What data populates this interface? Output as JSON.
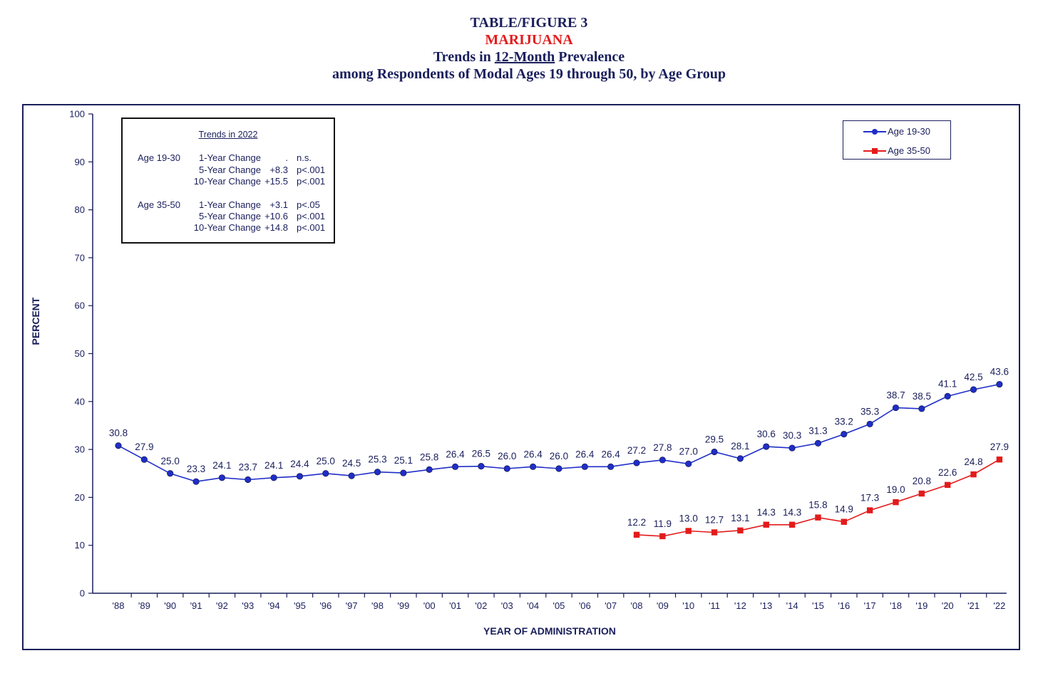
{
  "title": {
    "line1": "TABLE/FIGURE 3",
    "line2": "MARIJUANA",
    "line3_pre": "Trends in ",
    "line3_underlined": "12-Month",
    "line3_post": " Prevalence",
    "line4": "among Respondents of Modal Ages 19 through 50, by Age Group"
  },
  "stats_box": {
    "title": "Trends in 2022",
    "rows": [
      {
        "age": "Age 19-30",
        "label": "1-Year Change",
        "value": ".",
        "p": "n.s."
      },
      {
        "age": "",
        "label": "5-Year Change",
        "value": "+8.3",
        "p": "p<.001"
      },
      {
        "age": "",
        "label": "10-Year Change",
        "value": "+15.5",
        "p": "p<.001"
      },
      {
        "age": "Age 35-50",
        "label": "1-Year Change",
        "value": "+3.1",
        "p": "p<.05"
      },
      {
        "age": "",
        "label": "5-Year Change",
        "value": "+10.6",
        "p": "p<.001"
      },
      {
        "age": "",
        "label": "10-Year Change",
        "value": "+14.8",
        "p": "p<.001"
      }
    ]
  },
  "colors": {
    "navy": "#1a1f5c",
    "series1": "#1f2ec8",
    "series2": "#e31b1b"
  },
  "chart_data": {
    "type": "line",
    "xlabel": "YEAR OF ADMINISTRATION",
    "ylabel": "PERCENT",
    "ylim": [
      0,
      100
    ],
    "yticks": [
      0,
      10,
      20,
      30,
      40,
      50,
      60,
      70,
      80,
      90,
      100
    ],
    "grid": false,
    "legend_position": "top-right",
    "categories": [
      "'88",
      "'89",
      "'90",
      "'91",
      "'92",
      "'93",
      "'94",
      "'95",
      "'96",
      "'97",
      "'98",
      "'99",
      "'00",
      "'01",
      "'02",
      "'03",
      "'04",
      "'05",
      "'06",
      "'07",
      "'08",
      "'09",
      "'10",
      "'11",
      "'12",
      "'13",
      "'14",
      "'15",
      "'16",
      "'17",
      "'18",
      "'19",
      "'20",
      "'21",
      "'22"
    ],
    "series": [
      {
        "name": "Age 19-30",
        "marker": "circle",
        "values": [
          30.8,
          27.9,
          25.0,
          23.3,
          24.1,
          23.7,
          24.1,
          24.4,
          25.0,
          24.5,
          25.3,
          25.1,
          25.8,
          26.4,
          26.5,
          26.0,
          26.4,
          26.0,
          26.4,
          26.4,
          27.2,
          27.8,
          27.0,
          29.5,
          28.1,
          30.6,
          30.3,
          31.3,
          33.2,
          35.3,
          38.7,
          38.5,
          41.1,
          42.5,
          43.6
        ]
      },
      {
        "name": "Age 35-50",
        "marker": "square",
        "values": [
          null,
          null,
          null,
          null,
          null,
          null,
          null,
          null,
          null,
          null,
          null,
          null,
          null,
          null,
          null,
          null,
          null,
          null,
          null,
          null,
          12.2,
          11.9,
          13.0,
          12.7,
          13.1,
          14.3,
          14.3,
          15.8,
          14.9,
          17.3,
          19.0,
          20.8,
          22.6,
          24.8,
          27.9
        ]
      }
    ]
  }
}
